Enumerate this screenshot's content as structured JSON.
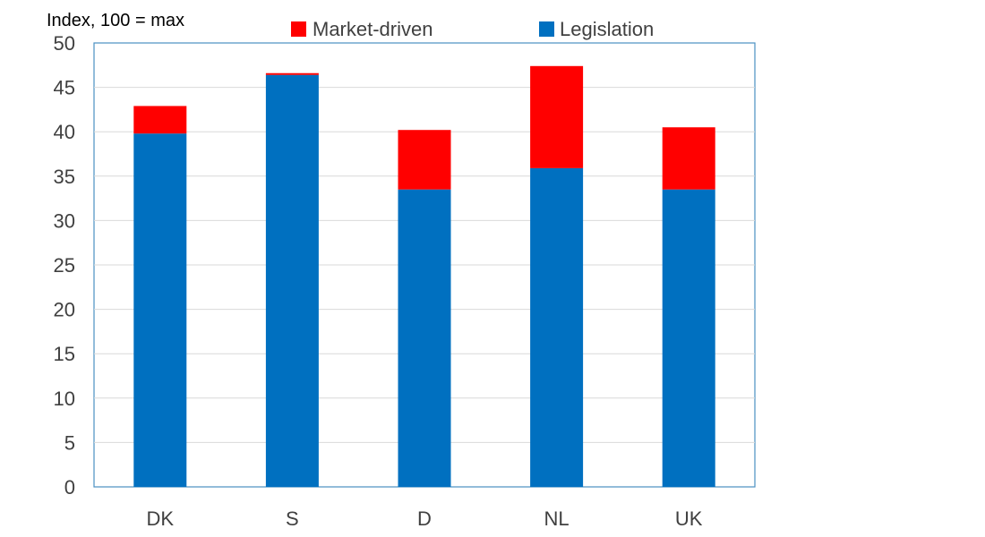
{
  "chart_data": {
    "type": "bar",
    "stacked": true,
    "ylabel": "Index, 100 = max",
    "categories": [
      "DK",
      "S",
      "D",
      "NL",
      "UK"
    ],
    "series": [
      {
        "name": "Legislation",
        "color": "#0070C0",
        "values": [
          39.8,
          46.4,
          33.5,
          35.9,
          33.5
        ]
      },
      {
        "name": "Market-driven",
        "color": "#FF0000",
        "values": [
          3.1,
          0.2,
          6.7,
          11.5,
          7.0
        ]
      }
    ],
    "legend_order": [
      "Market-driven",
      "Legislation"
    ],
    "ylim": [
      0,
      50
    ],
    "yticks": [
      0,
      5,
      10,
      15,
      20,
      25,
      30,
      35,
      40,
      45,
      50
    ],
    "grid": true,
    "legend_position": "top"
  }
}
